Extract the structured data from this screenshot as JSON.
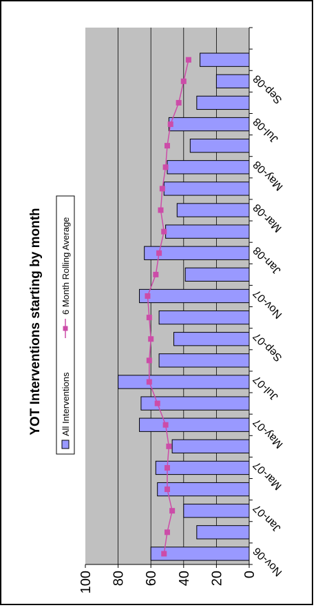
{
  "chart_data": {
    "type": "bar",
    "title": "YOT Interventions starting by month",
    "xlabel": "",
    "ylabel": "",
    "ylim": [
      0,
      100
    ],
    "yticks": [
      0,
      20,
      40,
      60,
      80,
      100
    ],
    "grid": true,
    "legend_position": "top",
    "categories": [
      "Nov-06",
      "Dec-06",
      "Jan-07",
      "Feb-07",
      "Mar-07",
      "Apr-07",
      "May-07",
      "Jun-07",
      "Jul-07",
      "Aug-07",
      "Sep-07",
      "Oct-07",
      "Nov-07",
      "Dec-07",
      "Jan-08",
      "Feb-08",
      "Mar-08",
      "Apr-08",
      "May-08",
      "Jun-08",
      "Jul-08",
      "Aug-08",
      "Sep-08",
      "Oct-08",
      "Nov-08"
    ],
    "tick_labels": [
      "Nov-06",
      "Jan-07",
      "Mar-07",
      "May-07",
      "Jul-07",
      "Sep-07",
      "Nov-07",
      "Jan-08",
      "Mar-08",
      "May-08",
      "Jul-08",
      "Sep-08"
    ],
    "series": [
      {
        "name": "All Interventions",
        "type": "bar",
        "color": "#9999ff",
        "values": [
          60,
          32,
          40,
          56,
          57,
          47,
          67,
          66,
          80,
          55,
          46,
          55,
          67,
          39,
          64,
          51,
          44,
          52,
          50,
          36,
          49,
          32,
          20,
          30,
          null
        ]
      },
      {
        "name": "6 Month Rolling Average",
        "type": "line",
        "color": "#cc4ca8",
        "values": [
          52,
          50,
          47,
          50,
          50,
          49,
          51,
          56,
          61,
          61,
          60,
          61,
          62,
          57,
          55,
          52,
          54,
          53,
          51,
          50,
          48,
          43,
          40,
          37,
          null
        ]
      }
    ]
  },
  "colors": {
    "plot_background": "#c0c0c0",
    "bar_fill": "#9999ff",
    "line": "#cc4ca8"
  }
}
